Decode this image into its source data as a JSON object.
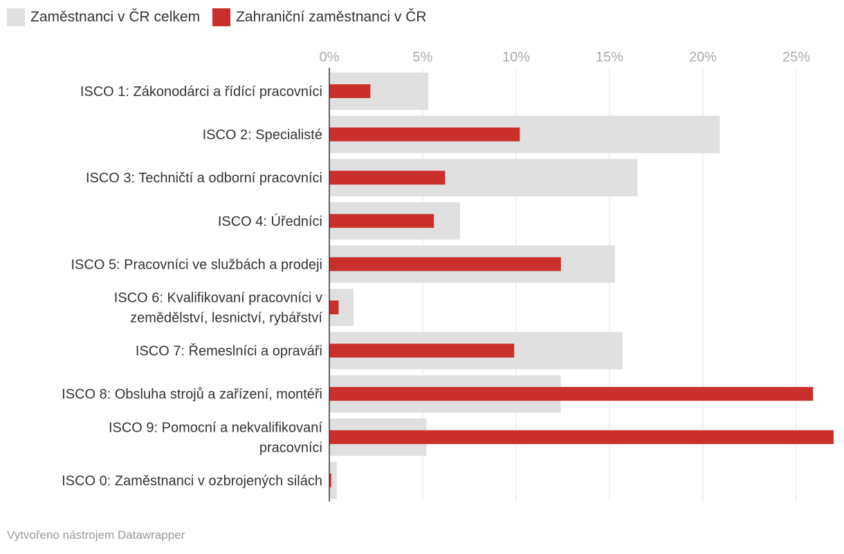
{
  "chart_data": {
    "type": "bar",
    "orientation": "horizontal",
    "categories": [
      [
        "ISCO 1: Zákonodárci a řídící pracovníci"
      ],
      [
        "ISCO 2: Specialisté"
      ],
      [
        "ISCO 3: Techničtí a odborní pracovníci"
      ],
      [
        "ISCO 4: Úředníci"
      ],
      [
        "ISCO 5: Pracovníci ve službách a prodeji"
      ],
      [
        "ISCO 6: Kvalifikovaní pracovníci v",
        "zemědělství, lesnictví, rybářství"
      ],
      [
        "ISCO 7: Řemeslníci a opraváři"
      ],
      [
        "ISCO 8: Obsluha strojů a zařízení, montéři"
      ],
      [
        "ISCO 9: Pomocní a nekvalifikovaní",
        "pracovníci"
      ],
      [
        "ISCO 0: Zaměstnanci v ozbrojených silách"
      ]
    ],
    "series": [
      {
        "name": "Zaměstnanci v ČR celkem",
        "color": "#e0e0e0",
        "values": [
          5.3,
          20.9,
          16.5,
          7.0,
          15.3,
          1.3,
          15.7,
          12.4,
          5.2,
          0.4
        ]
      },
      {
        "name": "Zahraniční zaměstnanci v ČR",
        "color": "#c9302c",
        "values": [
          2.2,
          10.2,
          6.2,
          5.6,
          12.4,
          0.5,
          9.9,
          25.9,
          27.0,
          0.1
        ]
      }
    ],
    "xlim": [
      0,
      27
    ],
    "xticks": [
      0,
      5,
      10,
      15,
      20,
      25
    ],
    "xtick_labels": [
      "0%",
      "5%",
      "10%",
      "15%",
      "20%",
      "25%"
    ],
    "xaxis_position": "top",
    "grid": true,
    "legend_position": "top-left"
  },
  "credit": "Vytvořeno nástrojem Datawrapper"
}
